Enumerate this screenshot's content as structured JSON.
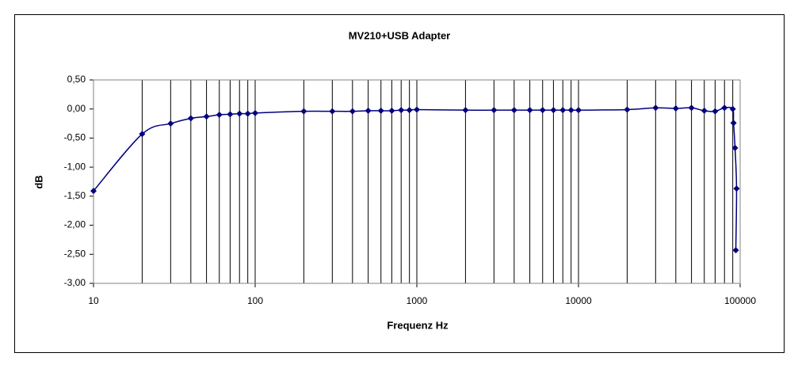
{
  "chart_data": {
    "type": "line",
    "title": "MV210+USB Adapter",
    "x_label": "Frequenz Hz",
    "y_label": "dB",
    "x_scale": "log",
    "xlim": [
      10,
      100000
    ],
    "xticks": [
      10,
      100,
      1000,
      10000,
      100000
    ],
    "x_minor_gridlines": [
      20,
      30,
      40,
      50,
      60,
      70,
      80,
      90,
      200,
      300,
      400,
      500,
      600,
      700,
      800,
      900,
      2000,
      3000,
      4000,
      5000,
      6000,
      7000,
      8000,
      9000,
      20000,
      30000,
      40000,
      50000,
      60000,
      70000,
      80000,
      90000
    ],
    "ylim": [
      -3,
      0.5
    ],
    "yticks": [
      {
        "value": -3,
        "label": "-3,00"
      },
      {
        "value": -2.5,
        "label": "-2,50"
      },
      {
        "value": -2,
        "label": "-2,00"
      },
      {
        "value": -1.5,
        "label": "-1,50"
      },
      {
        "value": -1,
        "label": "-1,00"
      },
      {
        "value": -0.5,
        "label": "-0,50"
      },
      {
        "value": 0,
        "label": "0,00"
      },
      {
        "value": 0.5,
        "label": "0,50"
      }
    ],
    "grid": "x",
    "smooth": true,
    "series": [
      {
        "color": "#000080",
        "x": [
          10,
          20,
          30,
          40,
          50,
          60,
          70,
          80,
          90,
          100,
          200,
          300,
          400,
          500,
          600,
          700,
          800,
          900,
          1000,
          2000,
          3000,
          4000,
          5000,
          6000,
          7000,
          8000,
          9000,
          10000,
          20000,
          30000,
          40000,
          50000,
          60000,
          70000,
          80000,
          90000,
          91000,
          93000,
          95000,
          94000
        ],
        "values": [
          -1.41,
          -0.43,
          -0.25,
          -0.16,
          -0.13,
          -0.1,
          -0.09,
          -0.08,
          -0.08,
          -0.07,
          -0.04,
          -0.04,
          -0.04,
          -0.03,
          -0.03,
          -0.03,
          -0.02,
          -0.02,
          -0.01,
          -0.02,
          -0.02,
          -0.02,
          -0.02,
          -0.02,
          -0.02,
          -0.02,
          -0.02,
          -0.02,
          -0.01,
          0.02,
          0.01,
          0.02,
          -0.03,
          -0.04,
          0.02,
          0.0,
          -0.24,
          -0.67,
          -1.37,
          -2.43
        ]
      }
    ]
  }
}
